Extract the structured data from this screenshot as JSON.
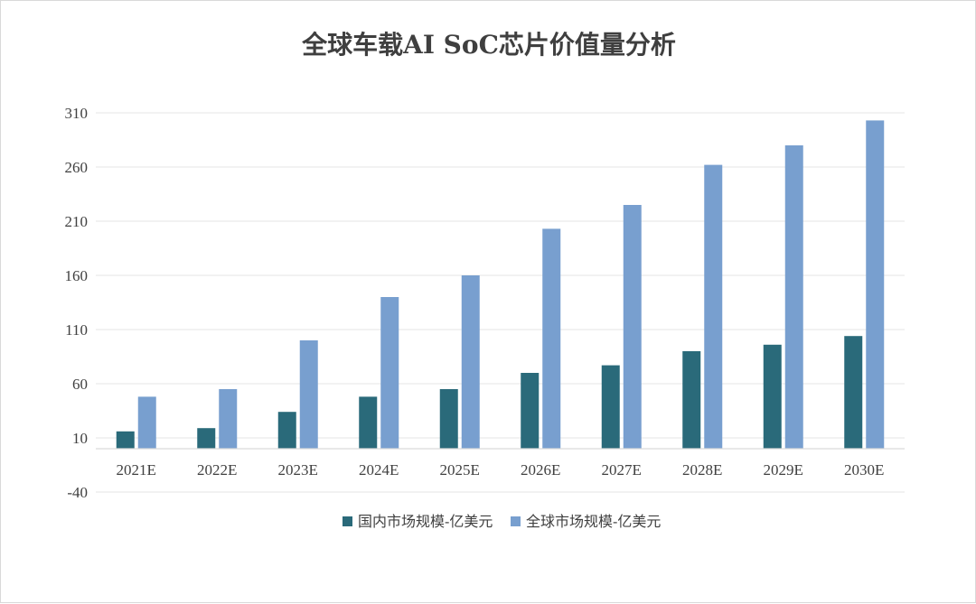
{
  "chart_data": {
    "type": "bar",
    "title": "全球车载AI SoC芯片价值量分析",
    "xlabel": "",
    "ylabel": "",
    "categories": [
      "2021E",
      "2022E",
      "2023E",
      "2024E",
      "2025E",
      "2026E",
      "2027E",
      "2028E",
      "2029E",
      "2030E"
    ],
    "series": [
      {
        "name": "国内市场规模-亿美元",
        "color": "#2a6a7a",
        "values": [
          16,
          19,
          34,
          48,
          55,
          70,
          77,
          90,
          96,
          104
        ]
      },
      {
        "name": "全球市场规模-亿美元",
        "color": "#789fcf",
        "values": [
          48,
          55,
          100,
          140,
          160,
          203,
          225,
          262,
          280,
          303
        ]
      }
    ],
    "yticks": [
      310,
      260,
      210,
      160,
      110,
      60,
      10,
      -40
    ],
    "ylim": [
      -40,
      310
    ],
    "category_axis_at": 0,
    "grid": true,
    "gridline_color": "#e6e6e6",
    "axis_line_color": "#d9d9d9",
    "legend_position": "bottom"
  }
}
